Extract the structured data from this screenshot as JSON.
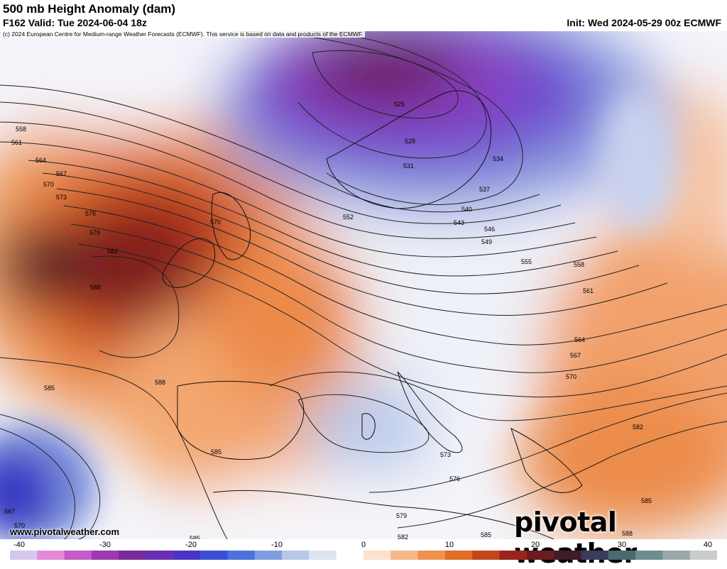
{
  "header": {
    "title": "500 mb Height Anomaly (dam)",
    "valid": "F162 Valid: Tue 2024-06-04 18z",
    "init": "Init: Wed 2024-05-29 00z ECMWF",
    "copyright": "(c) 2024 European Centre for Medium-range Weather Forecasts (ECMWF). This service is based on data and products of the ECMWF."
  },
  "footer": {
    "website": "www.pivotalweather.com",
    "brand": "pivotal weather"
  },
  "colorbar": {
    "ticks": [
      "-40",
      "-30",
      "-20",
      "-10",
      "0",
      "10",
      "20",
      "30",
      "40"
    ],
    "colors": [
      "#d6c7ef",
      "#e38ad9",
      "#c45bc8",
      "#9a3ab0",
      "#7a2d9a",
      "#6a2fb6",
      "#4c34c4",
      "#3b4fd6",
      "#4d72d9",
      "#7e9ee0",
      "#b6c7ea",
      "#dde5f3",
      "#ffffff",
      "#fbe2cf",
      "#f6b888",
      "#ef9251",
      "#e06f28",
      "#c4461c",
      "#982519",
      "#6b1c20",
      "#3f1d26",
      "#3b3b5a",
      "#4a6a72",
      "#6d8e8e",
      "#9aa9a8",
      "#c8cccc"
    ]
  },
  "contour_labels": [
    "525",
    "528",
    "531",
    "534",
    "537",
    "540",
    "543",
    "546",
    "549",
    "552",
    "555",
    "558",
    "561",
    "564",
    "567",
    "570",
    "573",
    "576",
    "579",
    "582",
    "585",
    "588"
  ],
  "colors": {
    "positive_max": "#6b1a1a",
    "positive": "#e07a32",
    "neutral": "#ffffff",
    "negative": "#8ea8dc",
    "negative_max": "#5a2ab0"
  }
}
